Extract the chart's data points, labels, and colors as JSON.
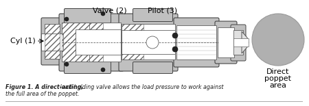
{
  "bg_color": "#ffffff",
  "label_valve": "Valve (2)",
  "label_pilot": "Pilot (3)",
  "label_cyl": "Cyl (1)",
  "label_direct_line1": "Direct",
  "label_direct_line2": "poppet",
  "label_direct_line3": "area",
  "caption_bold": "Figure 1. A direct-acting,",
  "caption_normal": " load-holding valve allows the load pressure to work against\nthe full area of the poppet.",
  "body_color": "#c0c0c0",
  "dark_color": "#444444",
  "light_gray": "#e0e0e0",
  "white": "#ffffff",
  "hatch_color": "#666666",
  "line_color": "#444444",
  "circle_color": "#b0b0b0",
  "black": "#111111"
}
